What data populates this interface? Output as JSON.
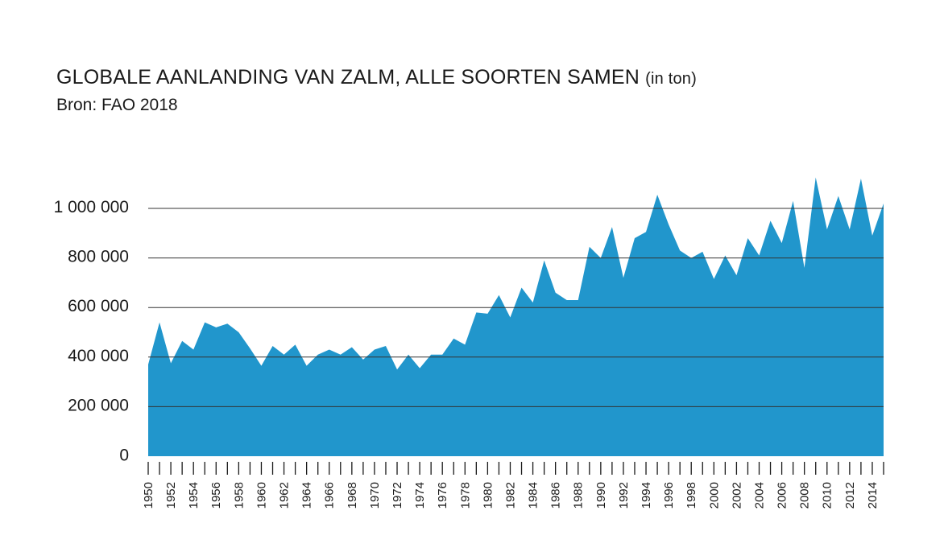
{
  "chart_data": {
    "type": "area",
    "title": "GLOBALE AANLANDING VAN ZALM, ALLE SOORTEN SAMEN",
    "title_unit": "(in ton)",
    "subtitle": "Bron: FAO 2018",
    "xlabel": "",
    "ylabel": "",
    "ylim": [
      0,
      1000000
    ],
    "yticks": [
      0,
      200000,
      400000,
      600000,
      800000,
      1000000
    ],
    "ytick_labels": [
      "0",
      "200 000",
      "400 000",
      "600 000",
      "800 000",
      "1 000 000"
    ],
    "xtick_labels": [
      "1950",
      "1952",
      "1954",
      "1956",
      "1958",
      "1960",
      "1962",
      "1964",
      "1966",
      "1968",
      "1970",
      "1972",
      "1974",
      "1976",
      "1978",
      "1980",
      "1982",
      "1984",
      "1986",
      "1988",
      "1990",
      "1992",
      "1994",
      "1996",
      "1998",
      "2000",
      "2002",
      "2004",
      "2006",
      "2008",
      "2010",
      "2012",
      "2014"
    ],
    "grid": "horizontal",
    "fill_color": "#2196cc",
    "x": [
      1950,
      1951,
      1952,
      1953,
      1954,
      1955,
      1956,
      1957,
      1958,
      1959,
      1960,
      1961,
      1962,
      1963,
      1964,
      1965,
      1966,
      1967,
      1968,
      1969,
      1970,
      1971,
      1972,
      1973,
      1974,
      1975,
      1976,
      1977,
      1978,
      1979,
      1980,
      1981,
      1982,
      1983,
      1984,
      1985,
      1986,
      1987,
      1988,
      1989,
      1990,
      1991,
      1992,
      1993,
      1994,
      1995,
      1996,
      1997,
      1998,
      1999,
      2000,
      2001,
      2002,
      2003,
      2004,
      2005,
      2006,
      2007,
      2008,
      2009,
      2010,
      2011,
      2012,
      2013,
      2014,
      2015
    ],
    "values": [
      370000,
      540000,
      375000,
      465000,
      430000,
      540000,
      520000,
      535000,
      500000,
      435000,
      365000,
      445000,
      410000,
      450000,
      365000,
      410000,
      430000,
      410000,
      440000,
      390000,
      430000,
      445000,
      350000,
      410000,
      355000,
      410000,
      410000,
      475000,
      450000,
      580000,
      575000,
      650000,
      560000,
      680000,
      620000,
      790000,
      660000,
      630000,
      630000,
      845000,
      800000,
      925000,
      720000,
      880000,
      905000,
      1055000,
      935000,
      830000,
      800000,
      825000,
      715000,
      810000,
      730000,
      880000,
      810000,
      950000,
      860000,
      1030000,
      760000,
      1125000,
      915000,
      1050000,
      915000,
      1120000,
      890000,
      1020000
    ]
  }
}
